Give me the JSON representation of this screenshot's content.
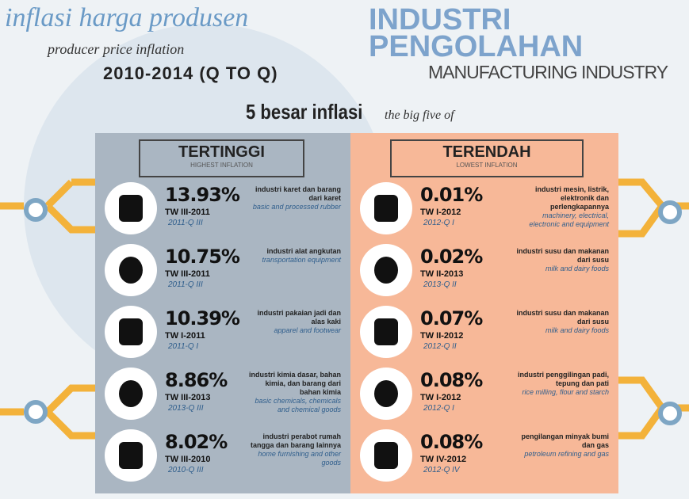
{
  "header": {
    "script_title": "inflasi harga produsen",
    "script_subtitle": "producer price inflation",
    "period": "2010-2014 (Q TO Q)",
    "sector_line1": "INDUSTRI",
    "sector_line2": "PENGOLAHAN",
    "sector_en": "MANUFACTURING INDUSTRY",
    "heading": "5 besar inflasi",
    "heading_en": "the big five of"
  },
  "panels": [
    {
      "title": "TERTINGGI",
      "subtitle": "HIGHEST INFLATION",
      "items": [
        {
          "value": "13.93%",
          "period": "TW III-2011",
          "period_en": "2011-Q III",
          "desc": "industri karet dan barang dari karet",
          "desc_en": "basic and processed rubber"
        },
        {
          "value": "10.75%",
          "period": "TW III-2011",
          "period_en": "2011-Q III",
          "desc": "industri alat angkutan",
          "desc_en": "transportation equipment"
        },
        {
          "value": "10.39%",
          "period": "TW I-2011",
          "period_en": "2011-Q I",
          "desc": "industri pakaian jadi dan alas kaki",
          "desc_en": "apparel and footwear"
        },
        {
          "value": "8.86%",
          "period": "TW III-2013",
          "period_en": "2013-Q III",
          "desc": "industri kimia dasar, bahan kimia, dan barang dari bahan kimia",
          "desc_en": "basic chemicals, chemicals and chemical goods"
        },
        {
          "value": "8.02%",
          "period": "TW III-2010",
          "period_en": "2010-Q III",
          "desc": "industri perabot rumah tangga dan barang lainnya",
          "desc_en": "home furnishing and other goods"
        }
      ]
    },
    {
      "title": "TERENDAH",
      "subtitle": "LOWEST INFLATION",
      "items": [
        {
          "value": "0.01%",
          "period": "TW I-2012",
          "period_en": "2012-Q I",
          "desc": "industri mesin, listrik, elektronik dan perlengkapannya",
          "desc_en": "machinery, electrical, electronic and equipment"
        },
        {
          "value": "0.02%",
          "period": "TW II-2013",
          "period_en": "2013-Q II",
          "desc": "industri susu dan makanan dari susu",
          "desc_en": "milk and dairy foods"
        },
        {
          "value": "0.07%",
          "period": "TW II-2012",
          "period_en": "2012-Q II",
          "desc": "industri susu dan makanan dari susu",
          "desc_en": "milk and dairy foods"
        },
        {
          "value": "0.08%",
          "period": "TW I-2012",
          "period_en": "2012-Q I",
          "desc": "industri penggilingan padi, tepung dan pati",
          "desc_en": "rice milling, flour and starch"
        },
        {
          "value": "0.08%",
          "period": "TW IV-2012",
          "period_en": "2012-Q IV",
          "desc": "pengilangan minyak bumi dan gas",
          "desc_en": "petroleum refining and gas"
        }
      ]
    }
  ]
}
